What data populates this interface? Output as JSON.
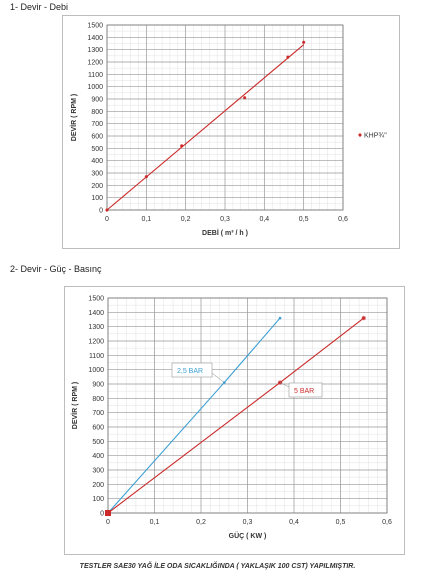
{
  "headings": {
    "chart1": "1- Devir - Debi",
    "chart2": "2- Devir - Güç - Basınç"
  },
  "footnote": "TESTLER SAE30 YAĞ İLE ODA SICAKLIĞINDA ( YAKLAŞIK 100 CST) YAPILMIŞTIR.",
  "chart_data": [
    {
      "type": "scatter",
      "xlabel": "DEBİ ( m³ / h )",
      "ylabel": "DEVİR ( RPM )",
      "xlim": [
        0,
        0.6
      ],
      "ylim": [
        0,
        1500
      ],
      "xticks": [
        "0",
        "0,1",
        "0,2",
        "0,3",
        "0,4",
        "0,5",
        "0,6"
      ],
      "yticks": [
        "0",
        "100",
        "200",
        "300",
        "400",
        "500",
        "600",
        "700",
        "800",
        "900",
        "1000",
        "1100",
        "1200",
        "1300",
        "1400",
        "1500"
      ],
      "grid": true,
      "legend_position": "right",
      "series": [
        {
          "name": "KHP¾\"",
          "color": "#cc2a2a",
          "points": [
            [
              0,
              0
            ],
            [
              0.1,
              270
            ],
            [
              0.19,
              520
            ],
            [
              0.35,
              910
            ],
            [
              0.46,
              1240
            ],
            [
              0.5,
              1360
            ]
          ],
          "trendline": [
            [
              0,
              0
            ],
            [
              0.5,
              1340
            ]
          ]
        }
      ]
    },
    {
      "type": "line",
      "xlabel": "GÜÇ ( KW )",
      "ylabel": "DEVİR ( RPM )",
      "xlim": [
        0,
        0.6
      ],
      "ylim": [
        0,
        1500
      ],
      "xticks": [
        "0",
        "0,1",
        "0,2",
        "0,3",
        "0,4",
        "0,5",
        "0,6"
      ],
      "yticks": [
        "0",
        "100",
        "200",
        "300",
        "400",
        "500",
        "600",
        "700",
        "800",
        "900",
        "1000",
        "1100",
        "1200",
        "1300",
        "1400",
        "1500"
      ],
      "grid": true,
      "series": [
        {
          "label": "2,5 BAR",
          "color": "#3a9fd4",
          "points": [
            [
              0,
              0
            ],
            [
              0.25,
              910
            ],
            [
              0.37,
              1360
            ]
          ]
        },
        {
          "label": "5 BAR",
          "color": "#cc2a2a",
          "points": [
            [
              0,
              0
            ],
            [
              0.37,
              910
            ],
            [
              0.55,
              1360
            ]
          ]
        }
      ]
    }
  ]
}
